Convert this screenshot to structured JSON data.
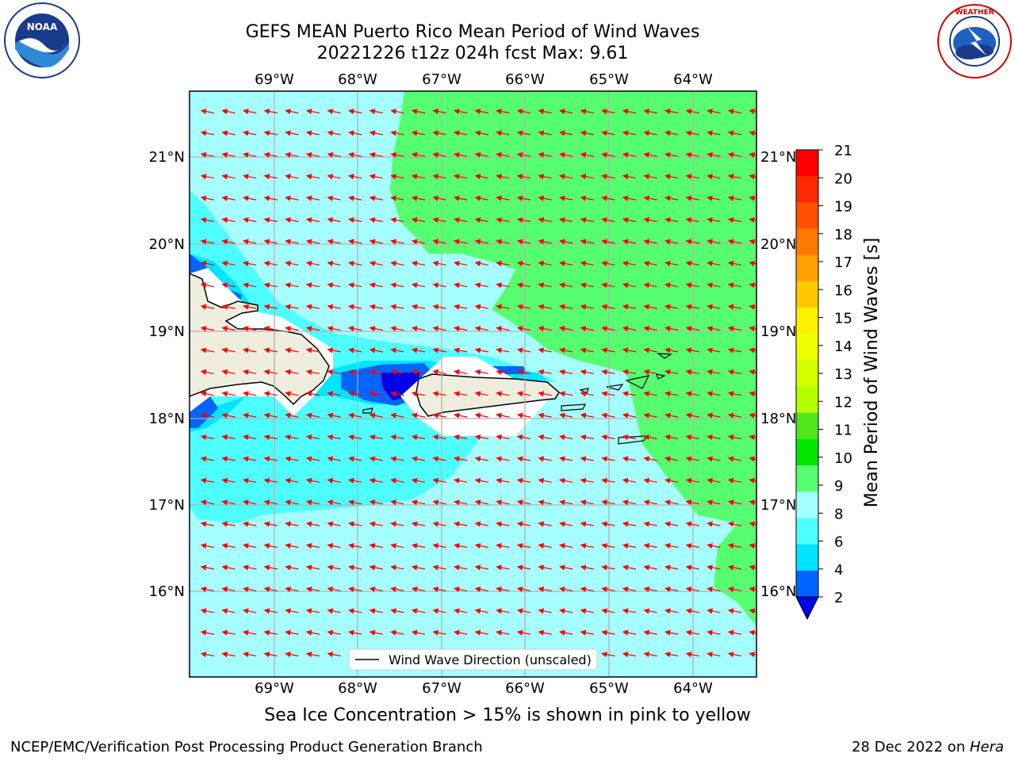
{
  "header": {
    "title_line1": "GEFS MEAN Puerto Rico Mean Period of Wind Waves",
    "title_line2": "20221226 t12z 024h fcst   Max: 9.61"
  },
  "logos": {
    "left": {
      "text": "NOAA",
      "ring_text": "NATIONAL OCEANIC AND ATMOSPHERIC ADMINISTRATION",
      "ring_text_bottom": "U.S. DEPARTMENT OF COMMERCE"
    },
    "right": {
      "ring_text": "NATIONAL WEATHER SERVICE"
    }
  },
  "map": {
    "lon_labels": [
      "69°W",
      "68°W",
      "67°W",
      "66°W",
      "65°W",
      "64°W"
    ],
    "lat_labels": [
      "21°N",
      "20°N",
      "19°N",
      "18°N",
      "17°N",
      "16°N"
    ],
    "legend_label": "Wind Wave Direction (unscaled)",
    "arrow_color": "#ff0000",
    "land_color": "#efedde",
    "fill_colors": {
      "2-4": "#0064ff",
      "4-6": "#00e5ff",
      "6-8": "#4dffff",
      "8-9": "#a6ffff",
      "9-10": "#55ff70"
    }
  },
  "colorbar": {
    "label": "Mean Period of Wind Waves [s]",
    "ticks": [
      "21",
      "20",
      "19",
      "18",
      "17",
      "16",
      "15",
      "14",
      "13",
      "12",
      "11",
      "10",
      "9",
      "8",
      "6",
      "4",
      "2"
    ],
    "colors_top_to_bottom": [
      "#ff0000",
      "#ff2800",
      "#ff5000",
      "#ff7800",
      "#ffa000",
      "#ffc800",
      "#fff000",
      "#f0ff00",
      "#d2ff00",
      "#b4ff00",
      "#50e61e",
      "#00e600",
      "#55ff70",
      "#a6ffff",
      "#4dffff",
      "#00e5ff",
      "#0064ff"
    ],
    "underflow_color": "#0000e6"
  },
  "footer": {
    "caption": "Sea Ice Concentration > 15% is shown in pink to yellow",
    "left": "NCEP/EMC/Verification Post Processing Product Generation Branch",
    "date": "28 Dec 2022 on ",
    "machine": "Hera"
  }
}
